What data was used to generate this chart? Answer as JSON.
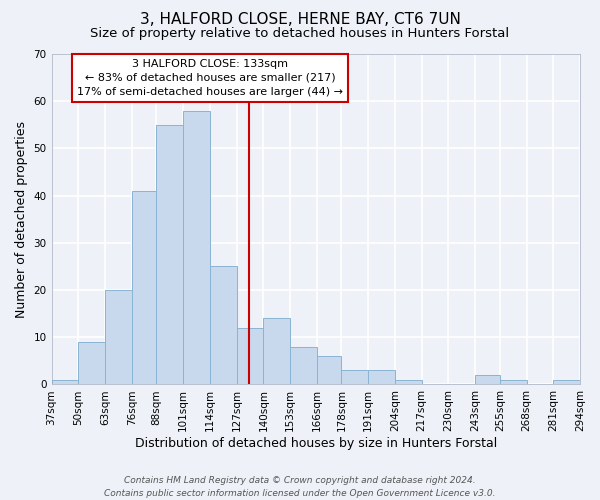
{
  "title": "3, HALFORD CLOSE, HERNE BAY, CT6 7UN",
  "subtitle": "Size of property relative to detached houses in Hunters Forstal",
  "xlabel": "Distribution of detached houses by size in Hunters Forstal",
  "ylabel": "Number of detached properties",
  "bar_edges": [
    37,
    50,
    63,
    76,
    88,
    101,
    114,
    127,
    140,
    153,
    166,
    178,
    191,
    204,
    217,
    230,
    243,
    255,
    268,
    281,
    294
  ],
  "bar_heights": [
    1,
    9,
    20,
    41,
    55,
    58,
    25,
    12,
    14,
    8,
    6,
    3,
    3,
    1,
    0,
    0,
    2,
    1,
    0,
    1
  ],
  "bar_color": "#c8d8ed",
  "bar_edge_color": "#8ab4d4",
  "vline_x": 133,
  "vline_color": "#cc0000",
  "ylim": [
    0,
    70
  ],
  "yticks": [
    0,
    10,
    20,
    30,
    40,
    50,
    60,
    70
  ],
  "tick_labels": [
    "37sqm",
    "50sqm",
    "63sqm",
    "76sqm",
    "88sqm",
    "101sqm",
    "114sqm",
    "127sqm",
    "140sqm",
    "153sqm",
    "166sqm",
    "178sqm",
    "191sqm",
    "204sqm",
    "217sqm",
    "230sqm",
    "243sqm",
    "255sqm",
    "268sqm",
    "281sqm",
    "294sqm"
  ],
  "annotation_title": "3 HALFORD CLOSE: 133sqm",
  "annotation_line1": "← 83% of detached houses are smaller (217)",
  "annotation_line2": "17% of semi-detached houses are larger (44) →",
  "annotation_box_color": "#ffffff",
  "annotation_box_edge": "#cc0000",
  "footer1": "Contains HM Land Registry data © Crown copyright and database right 2024.",
  "footer2": "Contains public sector information licensed under the Open Government Licence v3.0.",
  "bg_color": "#eef2f8",
  "plot_bg_color": "#eef2f8",
  "grid_color": "#ffffff",
  "title_fontsize": 11,
  "subtitle_fontsize": 9.5,
  "axis_label_fontsize": 9,
  "tick_fontsize": 7.5,
  "annotation_fontsize": 8,
  "footer_fontsize": 6.5
}
